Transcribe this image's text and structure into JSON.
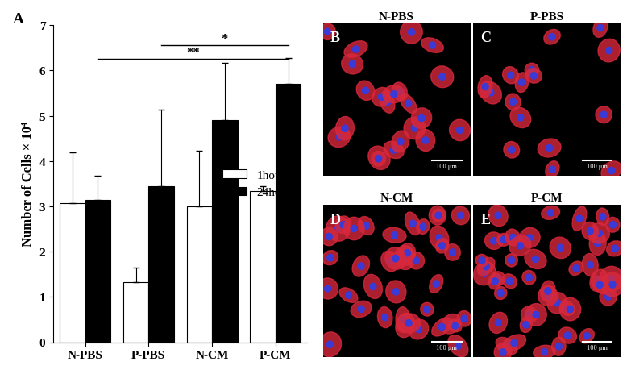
{
  "chart_data": {
    "type": "bar",
    "panel_label": "A",
    "categories": [
      "N-PBS",
      "P-PBS",
      "N-CM",
      "P-CM"
    ],
    "ylabel": "Number of Cells × 10⁴",
    "ylim": [
      0,
      7
    ],
    "yticks": [
      0,
      1,
      2,
      3,
      4,
      5,
      6,
      7
    ],
    "legend": "center right",
    "series": [
      {
        "name": "1hour",
        "color": "#ffffff",
        "values": [
          3.07,
          1.33,
          3.0,
          3.33
        ],
        "errors": [
          1.13,
          0.32,
          1.23,
          0.12
        ]
      },
      {
        "name": "24hours",
        "color": "#000000",
        "values": [
          3.15,
          3.45,
          4.9,
          5.7
        ],
        "errors": [
          0.52,
          1.68,
          1.27,
          0.57
        ]
      }
    ],
    "comparisons": [
      {
        "from": "P-PBS",
        "to": "P-CM",
        "series": "24hours",
        "y": 6.55,
        "label": "*"
      },
      {
        "from": "N-PBS",
        "to": "P-CM",
        "series": "24hours",
        "y": 6.25,
        "label": "**"
      }
    ]
  },
  "images": [
    {
      "panel_label": "B",
      "title": "N-PBS",
      "scale_bar": "100 μm"
    },
    {
      "panel_label": "C",
      "title": "P-PBS",
      "scale_bar": "100 μm"
    },
    {
      "panel_label": "D",
      "title": "N-CM",
      "scale_bar": "100 μm"
    },
    {
      "panel_label": "E",
      "title": "P-CM",
      "scale_bar": "100 μm"
    }
  ]
}
